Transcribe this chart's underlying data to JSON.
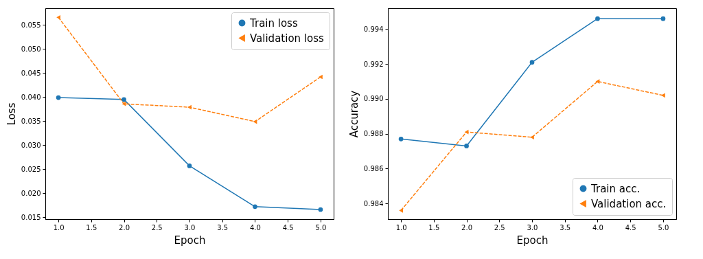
{
  "chart_data": [
    {
      "type": "line",
      "xlabel": "Epoch",
      "ylabel": "Loss",
      "x": [
        1,
        2,
        3,
        4,
        5
      ],
      "series": [
        {
          "name": "Train loss",
          "color": "#1f77b4",
          "marker": "circle",
          "line_style": "solid",
          "values": [
            0.0399,
            0.0395,
            0.0257,
            0.0172,
            0.0166
          ]
        },
        {
          "name": "Validation loss",
          "color": "#ff7f0e",
          "marker": "triangle",
          "line_style": "dashed",
          "values": [
            0.0566,
            0.0386,
            0.0379,
            0.0349,
            0.0442
          ]
        }
      ],
      "xlim": [
        0.8,
        5.2
      ],
      "xticks": [
        {
          "value": 1,
          "label": "1.0"
        },
        1.5,
        {
          "value": 2,
          "label": "2.0"
        },
        2.5,
        {
          "value": 3,
          "label": "3.0"
        },
        3.5,
        {
          "value": 4,
          "label": "4.0"
        },
        4.5,
        {
          "value": 5,
          "label": "5.0"
        }
      ],
      "ylim": [
        0.0146,
        0.0585
      ],
      "yticks": [
        0.015,
        {
          "value": 0.02,
          "label": "0.020"
        },
        0.025,
        {
          "value": 0.03,
          "label": "0.030"
        },
        0.035,
        {
          "value": 0.04,
          "label": "0.040"
        },
        0.045,
        {
          "value": 0.05,
          "label": "0.050"
        },
        0.055
      ],
      "grid": false,
      "legend": "top right"
    },
    {
      "type": "line",
      "xlabel": "Epoch",
      "ylabel": "Accuracy",
      "x": [
        1,
        2,
        3,
        4,
        5
      ],
      "series": [
        {
          "name": "Train acc.",
          "color": "#1f77b4",
          "marker": "circle",
          "line_style": "solid",
          "values": [
            0.9877,
            0.9873,
            0.9921,
            0.9946,
            0.9946
          ]
        },
        {
          "name": "Validation acc.",
          "color": "#ff7f0e",
          "marker": "triangle",
          "line_style": "dashed",
          "values": [
            0.9836,
            0.9881,
            0.9878,
            0.991,
            0.9902
          ]
        }
      ],
      "xlim": [
        0.8,
        5.2
      ],
      "xticks": [
        {
          "value": 1,
          "label": "1.0"
        },
        1.5,
        {
          "value": 2,
          "label": "2.0"
        },
        2.5,
        {
          "value": 3,
          "label": "3.0"
        },
        3.5,
        {
          "value": 4,
          "label": "4.0"
        },
        4.5,
        {
          "value": 5,
          "label": "5.0"
        }
      ],
      "ylim": [
        0.9831,
        0.9952
      ],
      "yticks": [
        0.984,
        0.986,
        0.988,
        {
          "value": 0.99,
          "label": "0.990"
        },
        0.992,
        0.994
      ],
      "grid": false,
      "legend": "bottom right"
    }
  ]
}
